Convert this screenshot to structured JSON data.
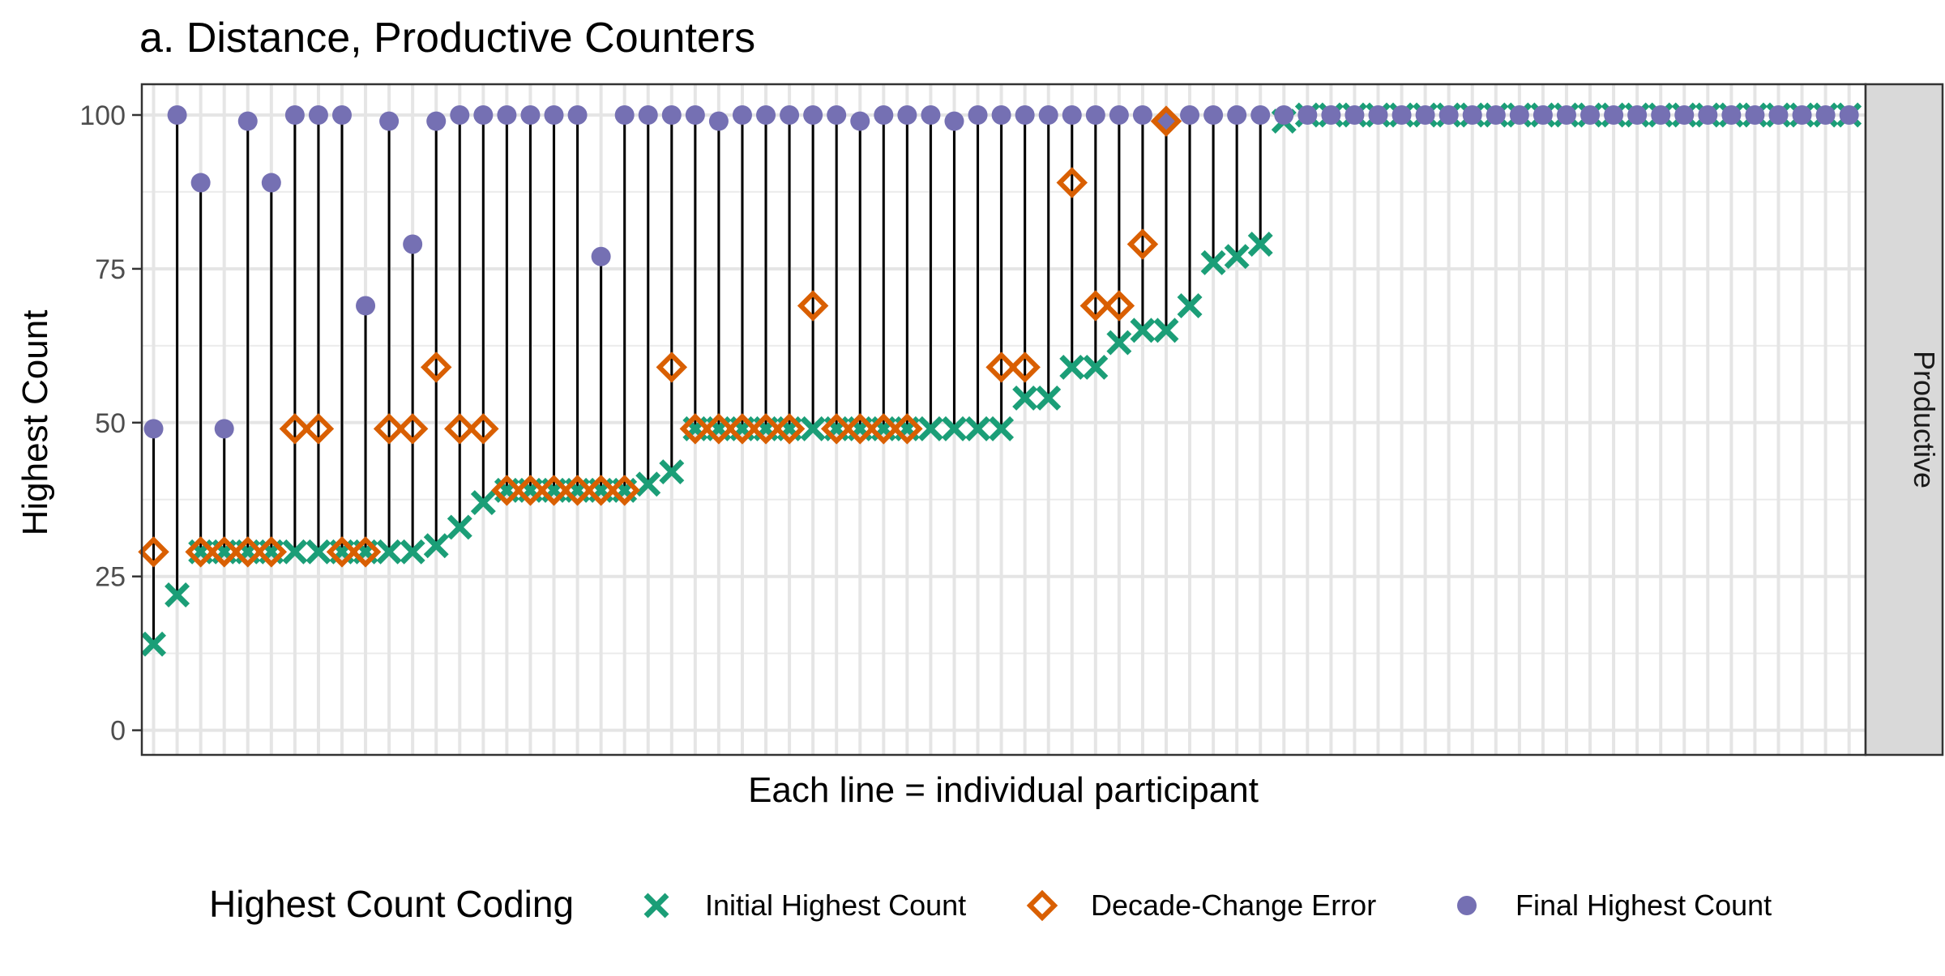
{
  "chart_data": {
    "type": "scatter",
    "title": "a. Distance, Productive Counters",
    "xlabel": "Each line = individual participant",
    "ylabel": "Highest Count",
    "facet_label": "Productive",
    "ylim": [
      -4,
      105
    ],
    "yticks": [
      0,
      25,
      50,
      75,
      100
    ],
    "grid": true,
    "legend_title": "Highest Count Coding",
    "legend_position": "bottom",
    "x": [
      1,
      2,
      3,
      4,
      5,
      6,
      7,
      8,
      9,
      10,
      11,
      12,
      13,
      14,
      15,
      16,
      17,
      18,
      19,
      20,
      21,
      22,
      23,
      24,
      25,
      26,
      27,
      28,
      29,
      30,
      31,
      32,
      33,
      34,
      35,
      36,
      37,
      38,
      39,
      40,
      41,
      42,
      43,
      44,
      45,
      46,
      47,
      48,
      49,
      50,
      51,
      52,
      53,
      54,
      55,
      56,
      57,
      58,
      59,
      60,
      61,
      62,
      63,
      64,
      65,
      66,
      67,
      68,
      69,
      70,
      71,
      72,
      73
    ],
    "series": [
      {
        "name": "Initial Highest Count",
        "color": "#1b9e77",
        "marker": "x-icon",
        "values": [
          14,
          22,
          29,
          29,
          29,
          29,
          29,
          29,
          29,
          29,
          29,
          29,
          30,
          33,
          37,
          39,
          39,
          39,
          39,
          39,
          39,
          40,
          42,
          49,
          49,
          49,
          49,
          49,
          49,
          49,
          49,
          49,
          49,
          49,
          49,
          49,
          49,
          54,
          54,
          59,
          59,
          63,
          65,
          65,
          69,
          76,
          77,
          79,
          99,
          100,
          100,
          100,
          100,
          100,
          100,
          100,
          100,
          100,
          100,
          100,
          100,
          100,
          100,
          100,
          100,
          100,
          100,
          100,
          100,
          100,
          100,
          100,
          100
        ]
      },
      {
        "name": "Decade-Change Error",
        "color": "#d95f02",
        "marker": "diamond-icon",
        "values": [
          29,
          null,
          29,
          29,
          29,
          29,
          49,
          49,
          29,
          29,
          49,
          49,
          59,
          49,
          49,
          39,
          39,
          39,
          39,
          39,
          39,
          null,
          59,
          49,
          49,
          49,
          49,
          49,
          69,
          49,
          49,
          49,
          49,
          null,
          null,
          null,
          59,
          59,
          null,
          89,
          69,
          69,
          79,
          99,
          null,
          null,
          null,
          null,
          null,
          null,
          null,
          null,
          null,
          null,
          null,
          null,
          null,
          null,
          null,
          null,
          null,
          null,
          null,
          null,
          null,
          null,
          null,
          null,
          null,
          null,
          null,
          null,
          null
        ]
      },
      {
        "name": "Final Highest Count",
        "color": "#7570b3",
        "marker": "circle-icon",
        "values": [
          49,
          100,
          89,
          49,
          99,
          89,
          100,
          100,
          100,
          69,
          99,
          79,
          99,
          100,
          100,
          100,
          100,
          100,
          100,
          77,
          100,
          100,
          100,
          100,
          99,
          100,
          100,
          100,
          100,
          100,
          99,
          100,
          100,
          100,
          99,
          100,
          100,
          100,
          100,
          100,
          100,
          100,
          100,
          99,
          100,
          100,
          100,
          100,
          100,
          100,
          100,
          100,
          100,
          100,
          100,
          100,
          100,
          100,
          100,
          100,
          100,
          100,
          100,
          100,
          100,
          100,
          100,
          100,
          100,
          100,
          100,
          100,
          100
        ]
      }
    ]
  }
}
